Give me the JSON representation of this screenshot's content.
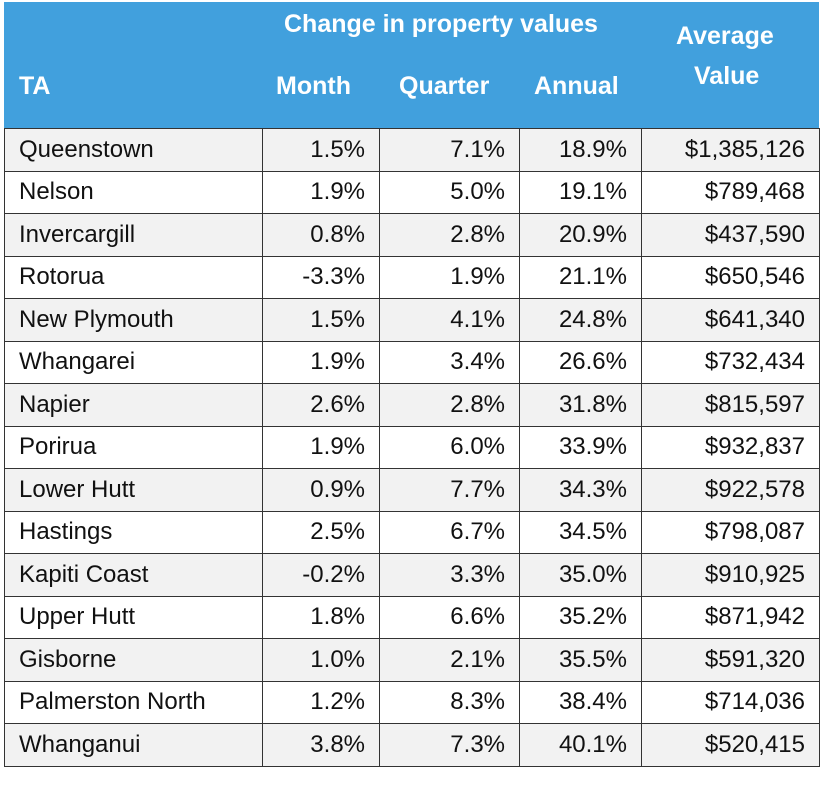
{
  "header": {
    "group_label": "Change in property values",
    "ta": "TA",
    "month": "Month",
    "quarter": "Quarter",
    "annual": "Annual",
    "avg_line1": "Average",
    "avg_line2": "Value"
  },
  "colors": {
    "header_bg": "#41a0dd",
    "header_text": "#ffffff",
    "stripe": "#f2f2f2"
  },
  "chart_data": {
    "type": "table",
    "columns": [
      "TA",
      "Month",
      "Quarter",
      "Annual",
      "Average Value"
    ],
    "rows": [
      [
        "Queenstown",
        "1.5%",
        "7.1%",
        "18.9%",
        "$1,385,126"
      ],
      [
        "Nelson",
        "1.9%",
        "5.0%",
        "19.1%",
        "$789,468"
      ],
      [
        "Invercargill",
        "0.8%",
        "2.8%",
        "20.9%",
        "$437,590"
      ],
      [
        "Rotorua",
        "-3.3%",
        "1.9%",
        "21.1%",
        "$650,546"
      ],
      [
        "New Plymouth",
        "1.5%",
        "4.1%",
        "24.8%",
        "$641,340"
      ],
      [
        "Whangarei",
        "1.9%",
        "3.4%",
        "26.6%",
        "$732,434"
      ],
      [
        "Napier",
        "2.6%",
        "2.8%",
        "31.8%",
        "$815,597"
      ],
      [
        "Porirua",
        "1.9%",
        "6.0%",
        "33.9%",
        "$932,837"
      ],
      [
        "Lower Hutt",
        "0.9%",
        "7.7%",
        "34.3%",
        "$922,578"
      ],
      [
        "Hastings",
        "2.5%",
        "6.7%",
        "34.5%",
        "$798,087"
      ],
      [
        "Kapiti Coast",
        "-0.2%",
        "3.3%",
        "35.0%",
        "$910,925"
      ],
      [
        "Upper Hutt",
        "1.8%",
        "6.6%",
        "35.2%",
        "$871,942"
      ],
      [
        "Gisborne",
        "1.0%",
        "2.1%",
        "35.5%",
        "$591,320"
      ],
      [
        "Palmerston North",
        "1.2%",
        "8.3%",
        "38.4%",
        "$714,036"
      ],
      [
        "Whanganui",
        "3.8%",
        "7.3%",
        "40.1%",
        "$520,415"
      ]
    ]
  }
}
